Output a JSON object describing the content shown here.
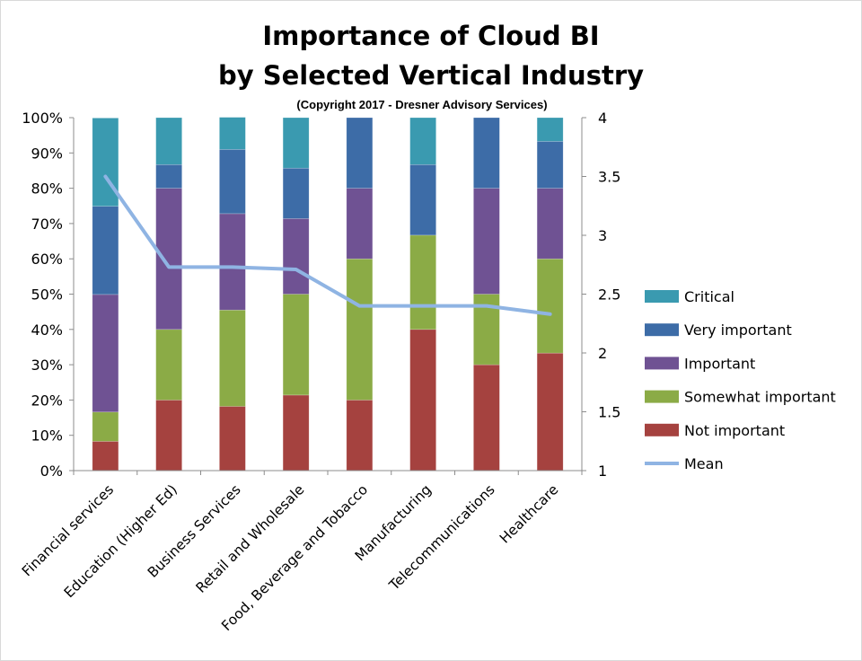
{
  "chart_data": {
    "type": "bar",
    "stacked": true,
    "title_lines": [
      "Importance of Cloud BI",
      "by Selected Vertical Industry"
    ],
    "subtitle": "(Copyright 2017 - Dresner Advisory Services)",
    "categories": [
      "Financial services",
      "Education (Higher Ed)",
      "Business Services",
      "Retail and Wholesale",
      "Food, Beverage and Tobacco",
      "Manufacturing",
      "Telecommunications",
      "Healthcare"
    ],
    "series": [
      {
        "name": "Not important",
        "color": "#a5423f",
        "values": [
          8.3,
          20.0,
          18.2,
          21.4,
          20.0,
          40.0,
          30.0,
          33.3
        ]
      },
      {
        "name": "Somewhat important",
        "color": "#8bab46",
        "values": [
          8.3,
          20.0,
          27.3,
          28.6,
          40.0,
          26.7,
          20.0,
          26.7
        ]
      },
      {
        "name": "Important",
        "color": "#6f5293",
        "values": [
          33.3,
          40.0,
          27.3,
          21.4,
          20.0,
          0.0,
          30.0,
          20.0
        ]
      },
      {
        "name": "Very important",
        "color": "#3d6ca7",
        "values": [
          25.0,
          6.7,
          18.2,
          14.3,
          20.0,
          20.0,
          20.0,
          13.3
        ]
      },
      {
        "name": "Critical",
        "color": "#3a9ab0",
        "values": [
          25.0,
          13.3,
          9.1,
          14.3,
          0.0,
          13.3,
          0.0,
          6.7
        ]
      }
    ],
    "line_series": {
      "name": "Mean",
      "color": "#8fb4e3",
      "axis": "right",
      "values": [
        3.5,
        2.73,
        2.73,
        2.71,
        2.4,
        2.4,
        2.4,
        2.33
      ]
    },
    "ylim_left": [
      0,
      100
    ],
    "yticks_left": [
      "0%",
      "10%",
      "20%",
      "30%",
      "40%",
      "50%",
      "60%",
      "70%",
      "80%",
      "90%",
      "100%"
    ],
    "ylim_right": [
      1,
      4
    ],
    "yticks_right": [
      "1",
      "1.5",
      "2",
      "2.5",
      "3",
      "3.5",
      "4"
    ],
    "legend_order": [
      "Critical",
      "Very important",
      "Important",
      "Somewhat important",
      "Not important",
      "Mean"
    ],
    "legend_position": "right"
  }
}
